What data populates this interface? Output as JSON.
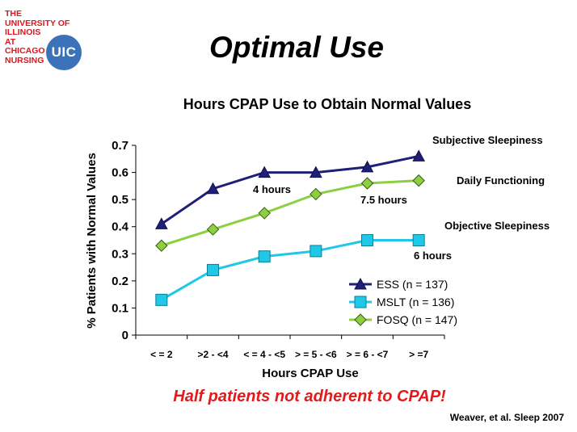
{
  "logo": {
    "lines": [
      "THE",
      "UNIVERSITY OF",
      "ILLINOIS",
      "AT",
      "CHICAGO",
      "NURSING"
    ],
    "badge": "UIC"
  },
  "slide_title": "Optimal Use",
  "footer_message": "Half patients not adherent to CPAP!",
  "citation": "Weaver, et al. Sleep 2007",
  "colors": {
    "ess": "#1f1f78",
    "mslt": "#1ec8e6",
    "fosq": "#8cd042",
    "footer": "#e01b1b"
  },
  "chart_data": {
    "type": "line",
    "title": "Hours CPAP Use to Obtain Normal Values",
    "xlabel": "Hours CPAP Use",
    "ylabel": "% Patients with Normal Values",
    "categories": [
      "< = 2",
      ">2 - <4",
      "< = 4 - <5",
      "> = 5 - <6",
      "> = 6 - <7",
      "> =7"
    ],
    "ylim": [
      0,
      0.7
    ],
    "yticks": [
      "0",
      "0.1",
      "0.2",
      "0.3",
      "0.4",
      "0.5",
      "0.6",
      "0.7"
    ],
    "grid": false,
    "legend_position": "bottom-right",
    "series": [
      {
        "name": "ESS (n = 137)",
        "marker": "triangle",
        "values": [
          0.41,
          0.54,
          0.6,
          0.6,
          0.62,
          0.66
        ]
      },
      {
        "name": "MSLT (n = 136)",
        "marker": "square",
        "values": [
          0.13,
          0.24,
          0.29,
          0.31,
          0.35,
          0.35
        ]
      },
      {
        "name": "FOSQ (n = 147)",
        "marker": "diamond",
        "values": [
          0.33,
          0.39,
          0.45,
          0.52,
          0.56,
          0.57
        ]
      }
    ],
    "annotations": {
      "ess_label": "Subjective Sleepiness",
      "fosq_label": "Daily Functioning",
      "mslt_label": "Objective Sleepiness",
      "ess_hours": "4 hours",
      "fosq_hours": "7.5 hours",
      "mslt_hours": "6 hours"
    }
  }
}
